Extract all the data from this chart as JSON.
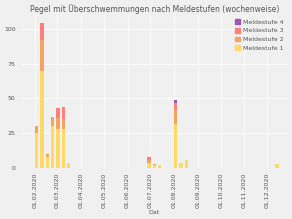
{
  "title": "Pegel mit Überschwemmungen nach Meldestufen (wochenweise)",
  "xlabel": "Dat",
  "colors": {
    "ms1": "#FFD966",
    "ms2": "#F4A460",
    "ms3": "#FF7F7F",
    "ms4": "#9B59B6"
  },
  "legend_labels": [
    "Meldestufe 4",
    "Meldestufe 3",
    "Meldestufe 2",
    "Meldestufe 1"
  ],
  "background_color": "#f0f0f0",
  "weekly_data": [
    {
      "date": "2020-01-13",
      "ms1": 0,
      "ms2": 0,
      "ms3": 0,
      "ms4": 0
    },
    {
      "date": "2020-01-20",
      "ms1": 0,
      "ms2": 0,
      "ms3": 0,
      "ms4": 0
    },
    {
      "date": "2020-01-27",
      "ms1": 0,
      "ms2": 0,
      "ms3": 0,
      "ms4": 0
    },
    {
      "date": "2020-02-03",
      "ms1": 25,
      "ms2": 5,
      "ms3": 0,
      "ms4": 0
    },
    {
      "date": "2020-02-10",
      "ms1": 70,
      "ms2": 22,
      "ms3": 12,
      "ms4": 0
    },
    {
      "date": "2020-02-17",
      "ms1": 8,
      "ms2": 2,
      "ms3": 0,
      "ms4": 0
    },
    {
      "date": "2020-02-24",
      "ms1": 30,
      "ms2": 7,
      "ms3": 0,
      "ms4": 0
    },
    {
      "date": "2020-03-02",
      "ms1": 28,
      "ms2": 8,
      "ms3": 7,
      "ms4": 0
    },
    {
      "date": "2020-03-09",
      "ms1": 28,
      "ms2": 7,
      "ms3": 9,
      "ms4": 0
    },
    {
      "date": "2020-03-16",
      "ms1": 4,
      "ms2": 0,
      "ms3": 0,
      "ms4": 0
    },
    {
      "date": "2020-03-23",
      "ms1": 0,
      "ms2": 0,
      "ms3": 0,
      "ms4": 0
    },
    {
      "date": "2020-03-30",
      "ms1": 0,
      "ms2": 0,
      "ms3": 0,
      "ms4": 0
    },
    {
      "date": "2020-04-06",
      "ms1": 0,
      "ms2": 0,
      "ms3": 0,
      "ms4": 0
    },
    {
      "date": "2020-04-13",
      "ms1": 0,
      "ms2": 0,
      "ms3": 0,
      "ms4": 0
    },
    {
      "date": "2020-04-20",
      "ms1": 0,
      "ms2": 0,
      "ms3": 0,
      "ms4": 0
    },
    {
      "date": "2020-04-27",
      "ms1": 0,
      "ms2": 0,
      "ms3": 0,
      "ms4": 0
    },
    {
      "date": "2020-05-04",
      "ms1": 0,
      "ms2": 0,
      "ms3": 0,
      "ms4": 0
    },
    {
      "date": "2020-05-11",
      "ms1": 0,
      "ms2": 0,
      "ms3": 0,
      "ms4": 0
    },
    {
      "date": "2020-05-18",
      "ms1": 0,
      "ms2": 0,
      "ms3": 0,
      "ms4": 0
    },
    {
      "date": "2020-05-25",
      "ms1": 0,
      "ms2": 0,
      "ms3": 0,
      "ms4": 0
    },
    {
      "date": "2020-06-01",
      "ms1": 0,
      "ms2": 0,
      "ms3": 0,
      "ms4": 0
    },
    {
      "date": "2020-06-08",
      "ms1": 0,
      "ms2": 0,
      "ms3": 0,
      "ms4": 0
    },
    {
      "date": "2020-06-15",
      "ms1": 0,
      "ms2": 0,
      "ms3": 0,
      "ms4": 0
    },
    {
      "date": "2020-06-22",
      "ms1": 0,
      "ms2": 0,
      "ms3": 0,
      "ms4": 0
    },
    {
      "date": "2020-06-29",
      "ms1": 4,
      "ms2": 2,
      "ms3": 2,
      "ms4": 0
    },
    {
      "date": "2020-07-06",
      "ms1": 2,
      "ms2": 1,
      "ms3": 0,
      "ms4": 0
    },
    {
      "date": "2020-07-13",
      "ms1": 2,
      "ms2": 0,
      "ms3": 0,
      "ms4": 0
    },
    {
      "date": "2020-07-20",
      "ms1": 0,
      "ms2": 0,
      "ms3": 0,
      "ms4": 0
    },
    {
      "date": "2020-07-27",
      "ms1": 0,
      "ms2": 0,
      "ms3": 0,
      "ms4": 0
    },
    {
      "date": "2020-08-03",
      "ms1": 32,
      "ms2": 10,
      "ms3": 5,
      "ms4": 2
    },
    {
      "date": "2020-08-10",
      "ms1": 4,
      "ms2": 0,
      "ms3": 0,
      "ms4": 0
    },
    {
      "date": "2020-08-17",
      "ms1": 6,
      "ms2": 0,
      "ms3": 0,
      "ms4": 0
    },
    {
      "date": "2020-08-24",
      "ms1": 0,
      "ms2": 0,
      "ms3": 0,
      "ms4": 0
    },
    {
      "date": "2020-08-31",
      "ms1": 0,
      "ms2": 0,
      "ms3": 0,
      "ms4": 0
    },
    {
      "date": "2020-09-07",
      "ms1": 0,
      "ms2": 0,
      "ms3": 0,
      "ms4": 0
    },
    {
      "date": "2020-09-14",
      "ms1": 0,
      "ms2": 0,
      "ms3": 0,
      "ms4": 0
    },
    {
      "date": "2020-09-21",
      "ms1": 0,
      "ms2": 0,
      "ms3": 0,
      "ms4": 0
    },
    {
      "date": "2020-09-28",
      "ms1": 0,
      "ms2": 0,
      "ms3": 0,
      "ms4": 0
    },
    {
      "date": "2020-10-05",
      "ms1": 0,
      "ms2": 0,
      "ms3": 0,
      "ms4": 0
    },
    {
      "date": "2020-10-12",
      "ms1": 0,
      "ms2": 0,
      "ms3": 0,
      "ms4": 0
    },
    {
      "date": "2020-10-19",
      "ms1": 0,
      "ms2": 0,
      "ms3": 0,
      "ms4": 0
    },
    {
      "date": "2020-10-26",
      "ms1": 0,
      "ms2": 0,
      "ms3": 0,
      "ms4": 0
    },
    {
      "date": "2020-11-02",
      "ms1": 0,
      "ms2": 0,
      "ms3": 0,
      "ms4": 0
    },
    {
      "date": "2020-11-09",
      "ms1": 0,
      "ms2": 0,
      "ms3": 0,
      "ms4": 0
    },
    {
      "date": "2020-11-16",
      "ms1": 0,
      "ms2": 0,
      "ms3": 0,
      "ms4": 0
    },
    {
      "date": "2020-11-23",
      "ms1": 0,
      "ms2": 0,
      "ms3": 0,
      "ms4": 0
    },
    {
      "date": "2020-11-30",
      "ms1": 0,
      "ms2": 0,
      "ms3": 0,
      "ms4": 0
    },
    {
      "date": "2020-12-07",
      "ms1": 0,
      "ms2": 0,
      "ms3": 0,
      "ms4": 0
    },
    {
      "date": "2020-12-14",
      "ms1": 3,
      "ms2": 0,
      "ms3": 0,
      "ms4": 0
    },
    {
      "date": "2020-12-21",
      "ms1": 0,
      "ms2": 0,
      "ms3": 0,
      "ms4": 0
    }
  ],
  "ylim": [
    0,
    110
  ],
  "xlim_start": "2020-01-13",
  "xlim_end": "2020-12-28",
  "title_fontsize": 5.5,
  "tick_fontsize": 4.5,
  "legend_fontsize": 4.5,
  "bar_width": 4.5
}
